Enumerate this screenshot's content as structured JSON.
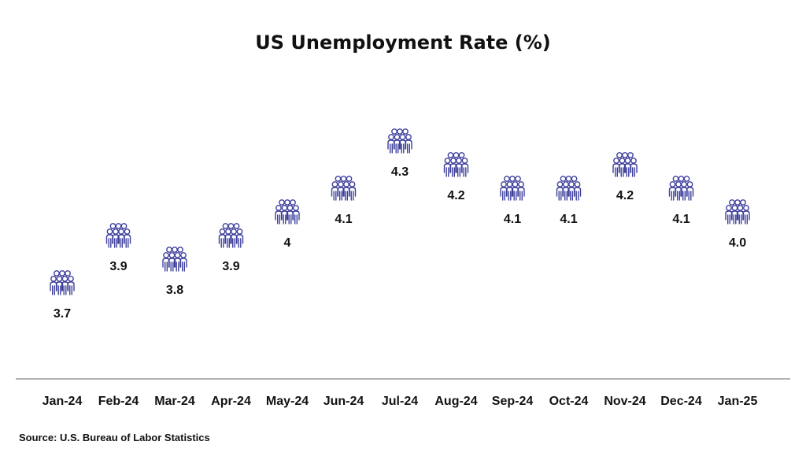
{
  "chart_data": {
    "type": "scatter",
    "title": "US Unemployment Rate (%)",
    "categories": [
      "Jan-24",
      "Feb-24",
      "Mar-24",
      "Apr-24",
      "May-24",
      "Jun-24",
      "Jul-24",
      "Aug-24",
      "Sep-24",
      "Oct-24",
      "Nov-24",
      "Dec-24",
      "Jan-25"
    ],
    "series": [
      {
        "values": [
          3.7,
          3.9,
          3.8,
          3.9,
          4.0,
          4.1,
          4.3,
          4.2,
          4.1,
          4.1,
          4.2,
          4.1,
          4.0
        ],
        "labels": [
          "3.7",
          "3.9",
          "3.8",
          "3.9",
          "4",
          "4.1",
          "4.3",
          "4.2",
          "4.1",
          "4.1",
          "4.2",
          "4.1",
          "4.0"
        ]
      }
    ],
    "xlabel": "",
    "ylabel": "",
    "grid": false,
    "marker_icon": "people-group-icon",
    "marker_color": "#3d3f9b",
    "axis_color": "#999999"
  },
  "source": "Source: U.S. Bureau of Labor Statistics"
}
